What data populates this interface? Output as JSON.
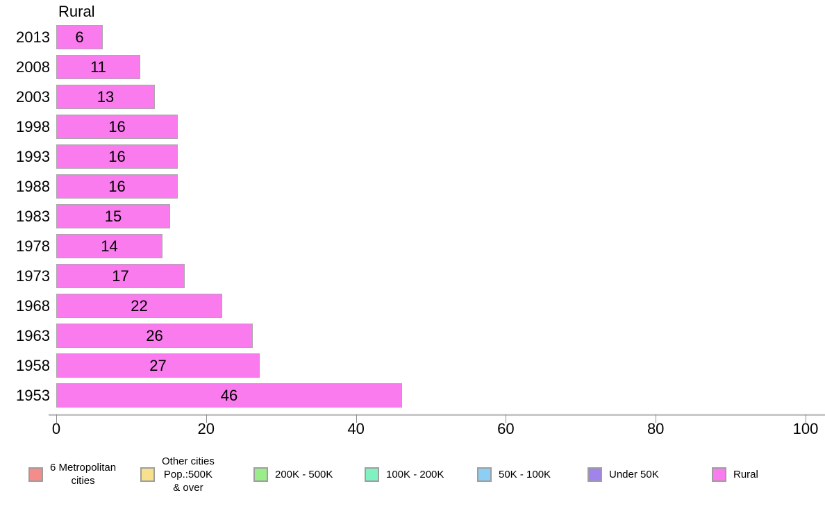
{
  "chart_data": {
    "type": "bar",
    "orientation": "horizontal",
    "title": "Rural",
    "categories": [
      "2013",
      "2008",
      "2003",
      "1998",
      "1993",
      "1988",
      "1983",
      "1978",
      "1973",
      "1968",
      "1963",
      "1958",
      "1953"
    ],
    "values": [
      6,
      11,
      13,
      16,
      16,
      16,
      15,
      14,
      17,
      22,
      26,
      27,
      46
    ],
    "value_labels": [
      "6",
      "11",
      "13",
      "16",
      "16",
      "16",
      "15",
      "14",
      "17",
      "22",
      "26",
      "27",
      "46"
    ],
    "xlim": [
      0,
      100
    ],
    "x_ticks": [
      "0",
      "20",
      "40",
      "60",
      "80",
      "100"
    ],
    "x_tick_values": [
      0,
      20,
      40,
      60,
      80,
      100
    ],
    "grid": "off",
    "bar_color": "#FA7BEE",
    "bar_border_color": "#ACA6AC",
    "legend_position": "bottom"
  },
  "legend": {
    "items": [
      {
        "label": "6 Metropolitan\ncities",
        "color": "#F58C8C"
      },
      {
        "label": "Other cities\nPop.:500K\n& over",
        "color": "#F7E18D"
      },
      {
        "label": "200K - 500K",
        "color": "#9AEE8A"
      },
      {
        "label": "100K - 200K",
        "color": "#80F2C1"
      },
      {
        "label": "50K - 100K",
        "color": "#8CCEF4"
      },
      {
        "label": "Under 50K",
        "color": "#A083EB"
      },
      {
        "label": "Rural",
        "color": "#FA7BEE"
      }
    ]
  }
}
